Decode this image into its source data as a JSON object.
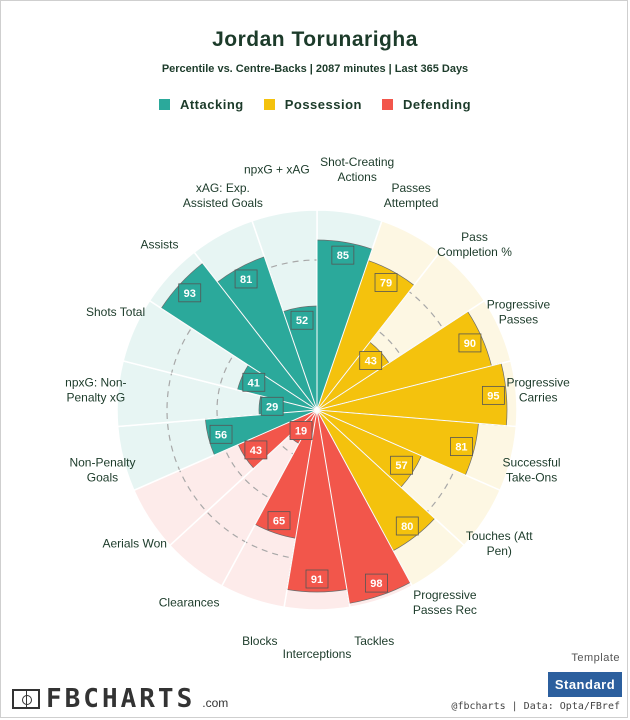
{
  "header": {
    "title": "Jordan Torunarigha",
    "subtitle": "Percentile vs. Centre-Backs | 2087 minutes | Last 365 Days"
  },
  "legend": [
    {
      "label": "Attacking",
      "color": "#2ba99b"
    },
    {
      "label": "Possession",
      "color": "#f4c20d"
    },
    {
      "label": "Defending",
      "color": "#f2564b"
    }
  ],
  "chart_data": {
    "type": "radar-bar",
    "title": "Jordan Torunarigha",
    "subtitle": "Percentile vs. Centre-Backs | 2087 minutes | Last 365 Days",
    "range": [
      0,
      100
    ],
    "rings": [
      25,
      50,
      75,
      100
    ],
    "categories": [
      {
        "name": "Attacking",
        "color": "#2ba99b",
        "bg": "#e7f5f3"
      },
      {
        "name": "Possession",
        "color": "#f4c20d",
        "bg": "#fdf7e3"
      },
      {
        "name": "Defending",
        "color": "#f2564b",
        "bg": "#fdebea"
      }
    ],
    "metrics": [
      {
        "label": [
          "Shot-Creating",
          "Actions"
        ],
        "value": 85,
        "category": "Attacking"
      },
      {
        "label": [
          "Passes",
          "Attempted"
        ],
        "value": 79,
        "category": "Possession"
      },
      {
        "label": [
          "Pass",
          "Completion %"
        ],
        "value": 43,
        "category": "Possession"
      },
      {
        "label": [
          "Progressive",
          "Passes"
        ],
        "value": 90,
        "category": "Possession"
      },
      {
        "label": [
          "Progressive",
          "Carries"
        ],
        "value": 95,
        "category": "Possession"
      },
      {
        "label": [
          "Successful",
          "Take-Ons"
        ],
        "value": 81,
        "category": "Possession"
      },
      {
        "label": [
          "Touches (Att",
          "Pen)"
        ],
        "value": 57,
        "category": "Possession"
      },
      {
        "label": [
          "Progressive",
          "Passes Rec"
        ],
        "value": 80,
        "category": "Possession"
      },
      {
        "label": [
          "Tackles"
        ],
        "value": 98,
        "category": "Defending"
      },
      {
        "label": [
          "Interceptions"
        ],
        "value": 91,
        "category": "Defending"
      },
      {
        "label": [
          "Blocks"
        ],
        "value": 65,
        "category": "Defending"
      },
      {
        "label": [
          "Clearances"
        ],
        "value": 19,
        "category": "Defending"
      },
      {
        "label": [
          "Aerials Won"
        ],
        "value": 43,
        "category": "Defending"
      },
      {
        "label": [
          "Non-Penalty",
          "Goals"
        ],
        "value": 56,
        "category": "Attacking"
      },
      {
        "label": [
          "npxG: Non-",
          "Penalty xG"
        ],
        "value": 29,
        "category": "Attacking"
      },
      {
        "label": [
          "Shots Total"
        ],
        "value": 41,
        "category": "Attacking"
      },
      {
        "label": [
          "Assists"
        ],
        "value": 93,
        "category": "Attacking"
      },
      {
        "label": [
          "xAG: Exp.",
          "Assisted Goals"
        ],
        "value": 81,
        "category": "Attacking"
      },
      {
        "label": [
          "npxG + xAG"
        ],
        "value": 52,
        "category": "Attacking"
      }
    ]
  },
  "footer": {
    "template_label": "Template",
    "template_button": "Standard",
    "brand_name": "FBCHARTS",
    "brand_suffix": ".com",
    "credit": "@fbcharts | Data: Opta/FBref"
  }
}
